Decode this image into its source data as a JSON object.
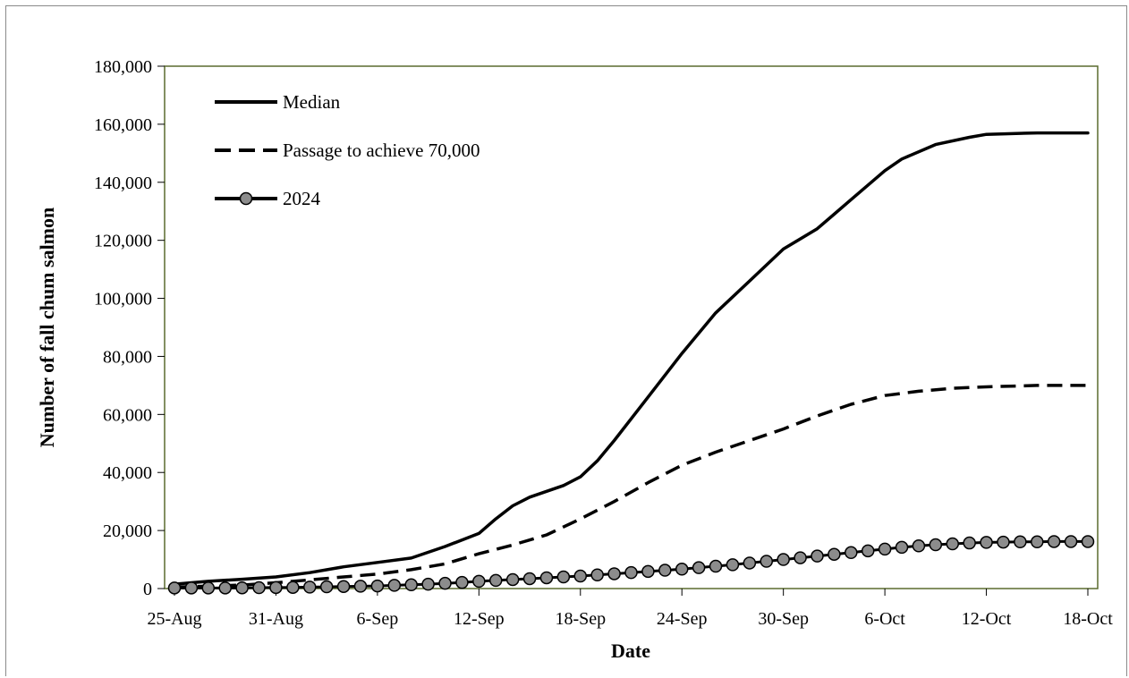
{
  "chart_data": {
    "type": "line",
    "xlabel": "Date",
    "ylabel": "Number of fall chum salmon",
    "x_ticks": [
      "25-Aug",
      "31-Aug",
      "6-Sep",
      "12-Sep",
      "18-Sep",
      "24-Sep",
      "30-Sep",
      "6-Oct",
      "12-Oct",
      "18-Oct"
    ],
    "y_ticks": [
      "0",
      "20,000",
      "40,000",
      "60,000",
      "80,000",
      "100,000",
      "120,000",
      "140,000",
      "160,000",
      "180,000"
    ],
    "ylim": [
      0,
      180000
    ],
    "x_start": "25-Aug",
    "x_end": "18-Oct",
    "grid": false,
    "legend": "top-left",
    "colors": {
      "plot_border": "#5a6b2e",
      "line": "#000000",
      "marker_fill": "#8c8c8c"
    },
    "series": [
      {
        "name": "Median",
        "style": "solid",
        "x": [
          "25-Aug",
          "27-Aug",
          "29-Aug",
          "31-Aug",
          "2-Sep",
          "4-Sep",
          "6-Sep",
          "8-Sep",
          "10-Sep",
          "12-Sep",
          "13-Sep",
          "14-Sep",
          "15-Sep",
          "17-Sep",
          "18-Sep",
          "19-Sep",
          "20-Sep",
          "22-Sep",
          "24-Sep",
          "26-Sep",
          "28-Sep",
          "30-Sep",
          "2-Oct",
          "3-Oct",
          "4-Oct",
          "6-Oct",
          "7-Oct",
          "9-Oct",
          "11-Oct",
          "12-Oct",
          "15-Oct",
          "18-Oct"
        ],
        "values": [
          1500,
          2500,
          3200,
          4000,
          5500,
          7500,
          9000,
          10500,
          14500,
          19000,
          24000,
          28500,
          31500,
          35500,
          38500,
          44000,
          51000,
          66000,
          81000,
          95000,
          106000,
          117000,
          124000,
          129000,
          134000,
          144000,
          148000,
          153000,
          155500,
          156500,
          157000,
          157000
        ]
      },
      {
        "name": "Passage to achieve 70,000",
        "style": "dashed",
        "x": [
          "25-Aug",
          "29-Aug",
          "31-Aug",
          "2-Sep",
          "4-Sep",
          "6-Sep",
          "8-Sep",
          "10-Sep",
          "12-Sep",
          "14-Sep",
          "16-Sep",
          "18-Sep",
          "20-Sep",
          "22-Sep",
          "24-Sep",
          "26-Sep",
          "28-Sep",
          "30-Sep",
          "2-Oct",
          "4-Oct",
          "6-Oct",
          "8-Oct",
          "10-Oct",
          "12-Oct",
          "15-Oct",
          "18-Oct"
        ],
        "values": [
          500,
          1200,
          2000,
          3000,
          4000,
          5000,
          6500,
          8500,
          12000,
          15000,
          18500,
          24000,
          30000,
          36500,
          42500,
          47000,
          51000,
          55000,
          59500,
          63500,
          66500,
          68000,
          69000,
          69500,
          70000,
          70000
        ]
      },
      {
        "name": "2024",
        "style": "solid-markers",
        "x": [
          "25-Aug",
          "26-Aug",
          "27-Aug",
          "28-Aug",
          "29-Aug",
          "30-Aug",
          "31-Aug",
          "1-Sep",
          "2-Sep",
          "3-Sep",
          "4-Sep",
          "5-Sep",
          "6-Sep",
          "7-Sep",
          "8-Sep",
          "9-Sep",
          "10-Sep",
          "11-Sep",
          "12-Sep",
          "13-Sep",
          "14-Sep",
          "15-Sep",
          "16-Sep",
          "17-Sep",
          "18-Sep",
          "19-Sep",
          "20-Sep",
          "21-Sep",
          "22-Sep",
          "23-Sep",
          "24-Sep",
          "25-Sep",
          "26-Sep",
          "27-Sep",
          "28-Sep",
          "29-Sep",
          "30-Sep",
          "1-Oct",
          "2-Oct",
          "3-Oct",
          "4-Oct",
          "5-Oct",
          "6-Oct",
          "7-Oct",
          "8-Oct",
          "9-Oct",
          "10-Oct",
          "11-Oct",
          "12-Oct",
          "13-Oct",
          "14-Oct",
          "15-Oct",
          "16-Oct",
          "17-Oct",
          "18-Oct"
        ],
        "values": [
          200,
          200,
          200,
          200,
          250,
          300,
          350,
          400,
          500,
          600,
          700,
          800,
          900,
          1100,
          1300,
          1500,
          1800,
          2100,
          2500,
          2800,
          3100,
          3400,
          3700,
          4000,
          4300,
          4700,
          5100,
          5500,
          5900,
          6300,
          6700,
          7200,
          7700,
          8200,
          8800,
          9400,
          10000,
          10600,
          11200,
          11800,
          12400,
          13000,
          13600,
          14200,
          14700,
          15100,
          15400,
          15700,
          15900,
          16000,
          16100,
          16100,
          16200,
          16200,
          16200
        ]
      }
    ]
  }
}
